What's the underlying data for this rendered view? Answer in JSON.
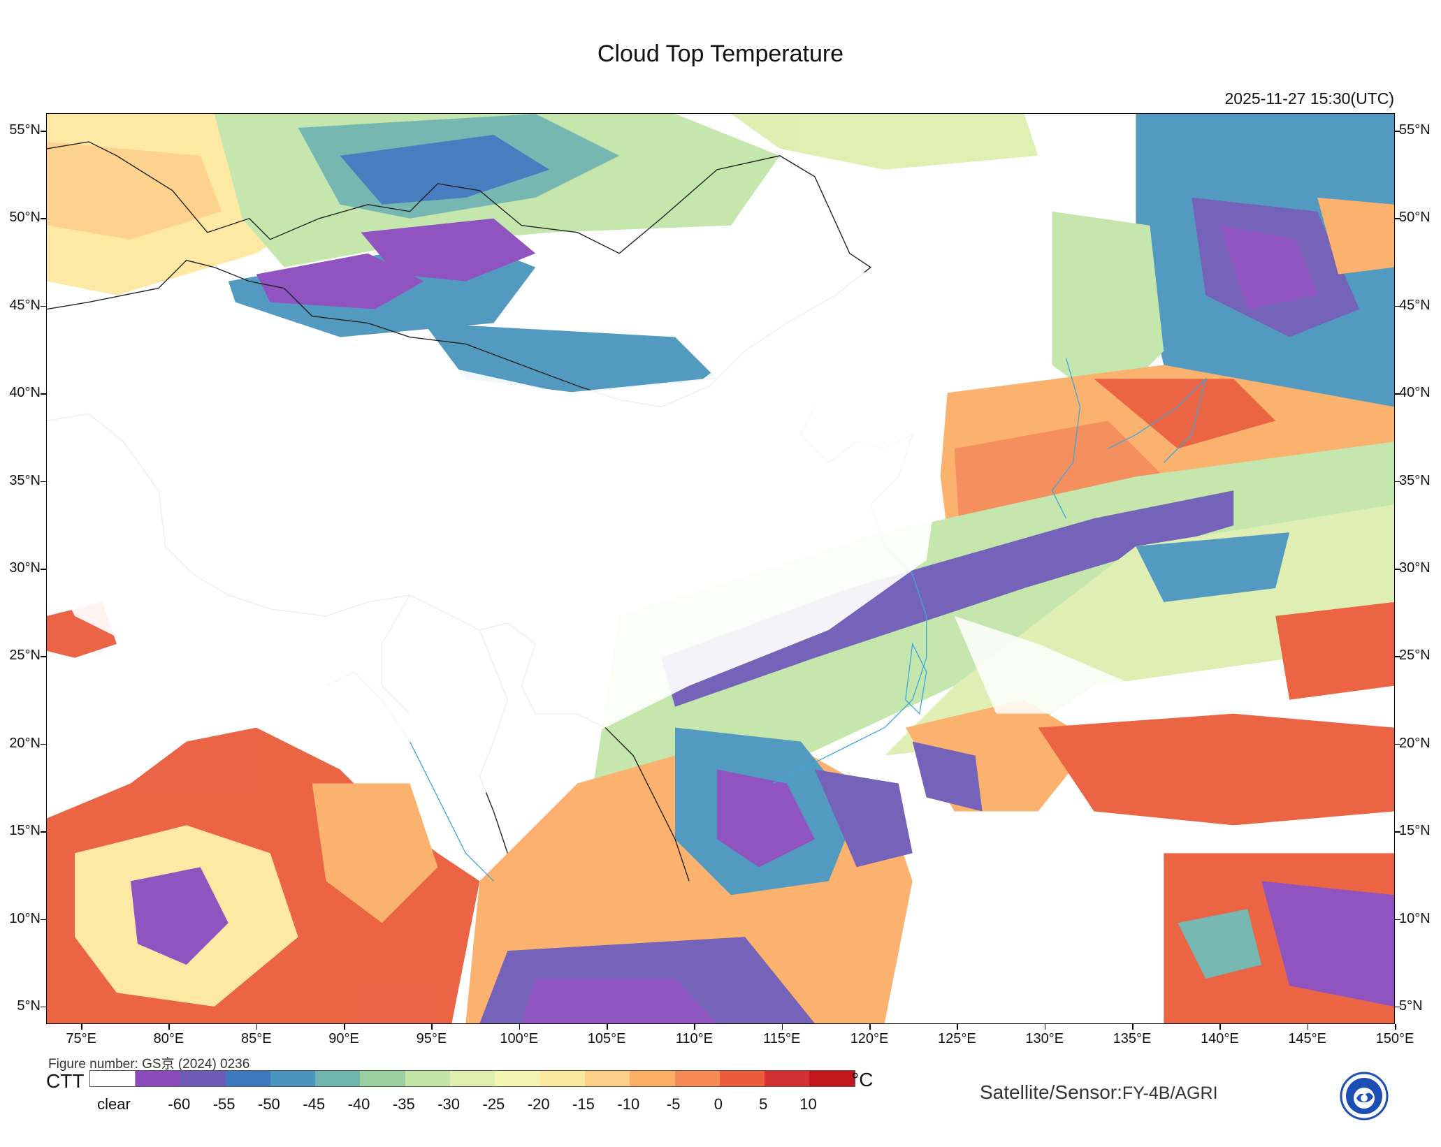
{
  "title": "Cloud Top Temperature",
  "timestamp": "2025-11-27 15:30(UTC)",
  "map": {
    "lat_labels": [
      "55°N",
      "50°N",
      "45°N",
      "40°N",
      "35°N",
      "30°N",
      "25°N",
      "20°N",
      "15°N",
      "10°N",
      "5°N"
    ],
    "lat_values": [
      55,
      50,
      45,
      40,
      35,
      30,
      25,
      20,
      15,
      10,
      5
    ],
    "lon_labels": [
      "75°E",
      "80°E",
      "85°E",
      "90°E",
      "95°E",
      "100°E",
      "105°E",
      "110°E",
      "115°E",
      "120°E",
      "125°E",
      "130°E",
      "135°E",
      "140°E",
      "145°E",
      "150°E"
    ],
    "lon_values": [
      75,
      80,
      85,
      90,
      95,
      100,
      105,
      110,
      115,
      120,
      125,
      130,
      135,
      140,
      145,
      150
    ],
    "lon_range": [
      73,
      150
    ],
    "lat_range": [
      4,
      56
    ]
  },
  "figure_number": "Figure number: GS京 (2024) 0236",
  "colorbar": {
    "variable": "CTT",
    "unit": "°C",
    "clear_label": "clear",
    "tick_labels": [
      "-60",
      "-55",
      "-50",
      "-45",
      "-40",
      "-35",
      "-30",
      "-25",
      "-20",
      "-15",
      "-10",
      "-5",
      "0",
      "5",
      "10"
    ],
    "colors": [
      "#8a4bbd",
      "#6d5bb5",
      "#3f78bd",
      "#4a95bd",
      "#6fb4ad",
      "#9cd09f",
      "#c2e5a8",
      "#deefaf",
      "#f3f4b2",
      "#fde8a0",
      "#fdd08a",
      "#fbae68",
      "#f58a55",
      "#ea5c3b",
      "#d53034",
      "#c4171c"
    ]
  },
  "sensor": {
    "label": "Satellite/Sensor:",
    "value": "FY-4B/AGRI"
  },
  "logo_icon": "cma-logo"
}
